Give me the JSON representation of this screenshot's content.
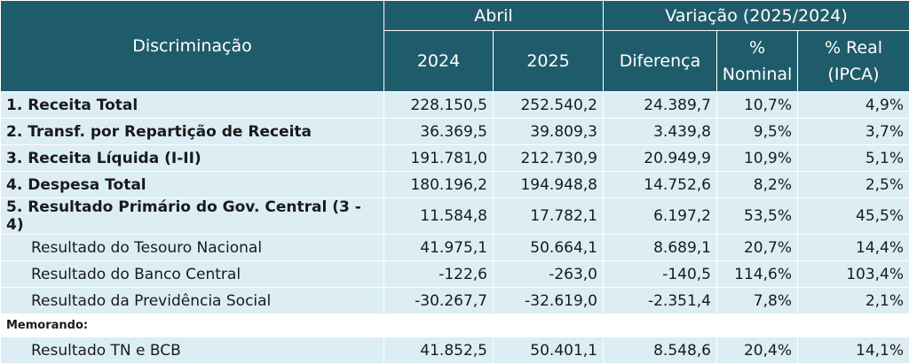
{
  "header": {
    "discriminacao": "Discriminação",
    "abril": "Abril",
    "variacao": "Variação (2025/2024)",
    "y2024": "2024",
    "y2025": "2025",
    "diferenca": "Diferença",
    "nominal_l1": "%",
    "nominal_l2": "Nominal",
    "real_l1": "% Real",
    "real_l2": "(IPCA)"
  },
  "rows": [
    {
      "label": "1. Receita Total",
      "v2024": "228.150,5",
      "v2025": "252.540,2",
      "dif": "24.389,7",
      "nom": "10,7%",
      "real": "4,9%"
    },
    {
      "label": "2. Transf. por Repartição de Receita",
      "v2024": "36.369,5",
      "v2025": "39.809,3",
      "dif": "3.439,8",
      "nom": "9,5%",
      "real": "3,7%"
    },
    {
      "label": "3. Receita Líquida (I-II)",
      "v2024": "191.781,0",
      "v2025": "212.730,9",
      "dif": "20.949,9",
      "nom": "10,9%",
      "real": "5,1%"
    },
    {
      "label": "4. Despesa Total",
      "v2024": "180.196,2",
      "v2025": "194.948,8",
      "dif": "14.752,6",
      "nom": "8,2%",
      "real": "2,5%"
    },
    {
      "label": "5. Resultado Primário do Gov. Central (3 - 4)",
      "v2024": "11.584,8",
      "v2025": "17.782,1",
      "dif": "6.197,2",
      "nom": "53,5%",
      "real": "45,5%"
    },
    {
      "label": "Resultado do Tesouro Nacional",
      "v2024": "41.975,1",
      "v2025": "50.664,1",
      "dif": "8.689,1",
      "nom": "20,7%",
      "real": "14,4%"
    },
    {
      "label": "Resultado do Banco Central",
      "v2024": "-122,6",
      "v2025": "-263,0",
      "dif": "-140,5",
      "nom": "114,6%",
      "real": "103,4%"
    },
    {
      "label": "Resultado da Previdência Social",
      "v2024": "-30.267,7",
      "v2025": "-32.619,0",
      "dif": "-2.351,4",
      "nom": "7,8%",
      "real": "2,1%"
    }
  ],
  "memo": {
    "label": "Memorando:",
    "row": {
      "label": "Resultado TN e BCB",
      "v2024": "41.852,5",
      "v2025": "50.401,1",
      "dif": "8.548,6",
      "nom": "20,4%",
      "real": "14,1%"
    }
  },
  "colors": {
    "header_bg": "#1f5c6b",
    "row_bg": "#dceef4"
  }
}
